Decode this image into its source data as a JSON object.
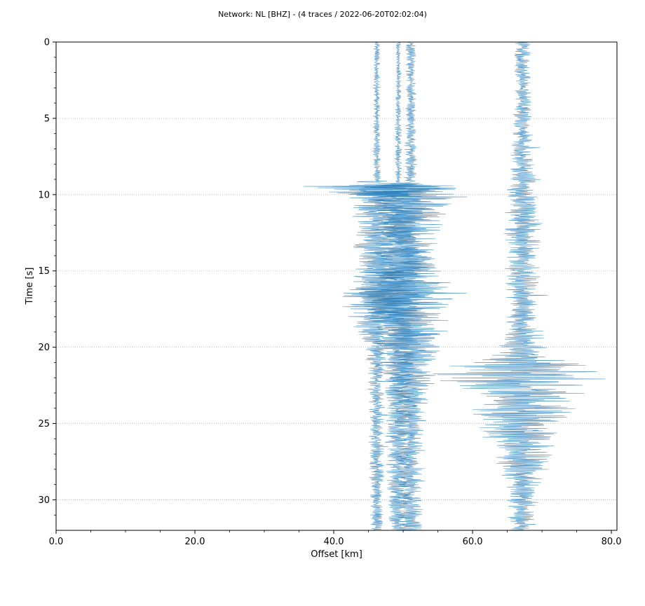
{
  "chart_data": {
    "type": "line",
    "title": "Network: NL [BHZ] - (4 traces / 2022-06-20T02:02:04)",
    "xlabel": "Offset [km]",
    "ylabel": "Time [s]",
    "xlim": [
      0,
      80.8
    ],
    "ylim": [
      0,
      32
    ],
    "y_inverted": true,
    "grid": "horizontal-dotted",
    "x_ticks": [
      "0.0",
      "20.0",
      "40.0",
      "60.0",
      "80.0"
    ],
    "y_ticks": [
      "0",
      "5",
      "10",
      "15",
      "20",
      "25",
      "30"
    ],
    "trace_color": "#1f77b4",
    "series": [
      {
        "offset_km": 46.2,
        "amplitude_envelope": [
          {
            "t": 0,
            "a": 0.4
          },
          {
            "t": 9.1,
            "a": 0.5
          },
          {
            "t": 9.3,
            "a": 10.5
          },
          {
            "t": 10.2,
            "a": 4.0
          },
          {
            "t": 12,
            "a": 2.5
          },
          {
            "t": 15.5,
            "a": 3.5
          },
          {
            "t": 16.5,
            "a": 6.0
          },
          {
            "t": 17.5,
            "a": 4.0
          },
          {
            "t": 19.5,
            "a": 2.0
          },
          {
            "t": 21,
            "a": 1.2
          },
          {
            "t": 32,
            "a": 0.8
          }
        ]
      },
      {
        "offset_km": 49.3,
        "amplitude_envelope": [
          {
            "t": 0,
            "a": 0.3
          },
          {
            "t": 9.2,
            "a": 0.5
          },
          {
            "t": 9.5,
            "a": 7.0
          },
          {
            "t": 10.5,
            "a": 4.0
          },
          {
            "t": 13,
            "a": 3.0
          },
          {
            "t": 16.5,
            "a": 6.0
          },
          {
            "t": 18,
            "a": 4.0
          },
          {
            "t": 20,
            "a": 3.0
          },
          {
            "t": 22,
            "a": 2.0
          },
          {
            "t": 32,
            "a": 1.2
          }
        ]
      },
      {
        "offset_km": 51.1,
        "amplitude_envelope": [
          {
            "t": 0,
            "a": 0.6
          },
          {
            "t": 9.2,
            "a": 0.8
          },
          {
            "t": 9.5,
            "a": 10.0
          },
          {
            "t": 11,
            "a": 4.5
          },
          {
            "t": 14,
            "a": 3.0
          },
          {
            "t": 17,
            "a": 6.0
          },
          {
            "t": 19.5,
            "a": 4.5
          },
          {
            "t": 22,
            "a": 3.0
          },
          {
            "t": 25,
            "a": 2.0
          },
          {
            "t": 32,
            "a": 1.5
          }
        ]
      },
      {
        "offset_km": 67.2,
        "amplitude_envelope": [
          {
            "t": 0,
            "a": 1.0
          },
          {
            "t": 5,
            "a": 1.2
          },
          {
            "t": 9,
            "a": 1.8
          },
          {
            "t": 12.5,
            "a": 2.5
          },
          {
            "t": 14.5,
            "a": 2.2
          },
          {
            "t": 18,
            "a": 2.0
          },
          {
            "t": 20.5,
            "a": 3.5
          },
          {
            "t": 21.5,
            "a": 11.5
          },
          {
            "t": 23,
            "a": 8.0
          },
          {
            "t": 25,
            "a": 6.0
          },
          {
            "t": 27,
            "a": 4.0
          },
          {
            "t": 29,
            "a": 2.5
          },
          {
            "t": 32,
            "a": 1.5
          }
        ]
      }
    ]
  }
}
